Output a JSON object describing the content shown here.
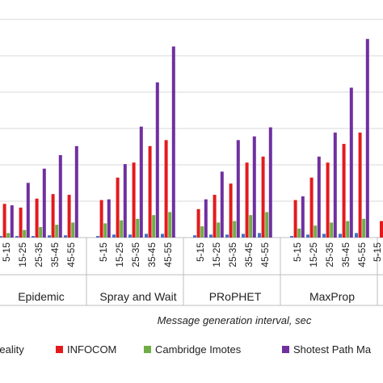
{
  "chart_data": {
    "type": "bar",
    "xlabel": "Message generation  interval, sec",
    "ylabel": "",
    "ylim": [
      0,
      290
    ],
    "grid": true,
    "legend_position": "bottom",
    "interval_labels": [
      "5-15",
      "15-25",
      "25-35",
      "35-45",
      "45-55"
    ],
    "groups": [
      {
        "name": "Epidemic",
        "categories": [
          "5-15",
          "15-25",
          "25-35",
          "35-45",
          "45-55"
        ],
        "series": [
          {
            "name": "Reality",
            "values": [
              2,
              2,
              2,
              3,
              3
            ]
          },
          {
            "name": "INFOCOM",
            "values": [
              45,
              40,
              52,
              58,
              57
            ]
          },
          {
            "name": "Cambridge Imotes",
            "values": [
              6,
              10,
              14,
              17,
              20
            ]
          },
          {
            "name": "Shotest Path Map",
            "values": [
              43,
              73,
              92,
              110,
              122
            ]
          }
        ]
      },
      {
        "name": "Spray and Wait",
        "categories": [
          "5-15",
          "15-25",
          "25-35",
          "35-45",
          "45-55"
        ],
        "series": [
          {
            "name": "Reality",
            "values": [
              2,
              4,
              4,
              5,
              5
            ]
          },
          {
            "name": "INFOCOM",
            "values": [
              50,
              80,
              100,
              122,
              130
            ]
          },
          {
            "name": "Cambridge Imotes",
            "values": [
              19,
              23,
              25,
              30,
              34
            ]
          },
          {
            "name": "Shotest Path Map",
            "values": [
              51,
              98,
              148,
              207,
              255
            ]
          }
        ]
      },
      {
        "name": "PRoPHET",
        "categories": [
          "5-15",
          "15-25",
          "25-35",
          "35-45",
          "45-55"
        ],
        "series": [
          {
            "name": "Reality",
            "values": [
              3,
              4,
              4,
              5,
              6
            ]
          },
          {
            "name": "INFOCOM",
            "values": [
              38,
              57,
              72,
              100,
              108
            ]
          },
          {
            "name": "Cambridge Imotes",
            "values": [
              15,
              20,
              22,
              30,
              34
            ]
          },
          {
            "name": "Shotest Path Map",
            "values": [
              51,
              88,
              130,
              135,
              147
            ]
          }
        ]
      },
      {
        "name": "MaxProp",
        "categories": [
          "5-15",
          "15-25",
          "25-35",
          "35-45",
          "45-55"
        ],
        "series": [
          {
            "name": "Reality",
            "values": [
              2,
              4,
              5,
              5,
              6
            ]
          },
          {
            "name": "INFOCOM",
            "values": [
              50,
              80,
              100,
              125,
              140
            ]
          },
          {
            "name": "Cambridge Imotes",
            "values": [
              12,
              16,
              20,
              22,
              25
            ]
          },
          {
            "name": "Shotest Path Map",
            "values": [
              55,
              108,
              140,
              200,
              265
            ]
          }
        ]
      }
    ],
    "colors": {
      "Reality": "#4472c4",
      "INFOCOM": "#e31a1c",
      "Cambridge Imotes": "#70ad47",
      "Shotest Path Map": "#7030a0"
    },
    "legend_labels": [
      "Reality",
      "INFOCOM",
      "Cambridge Imotes",
      "Shotest Path Ma"
    ],
    "colors_extra": {
      "grid": "#d9d9d9",
      "axis": "#bfbfbf"
    }
  }
}
